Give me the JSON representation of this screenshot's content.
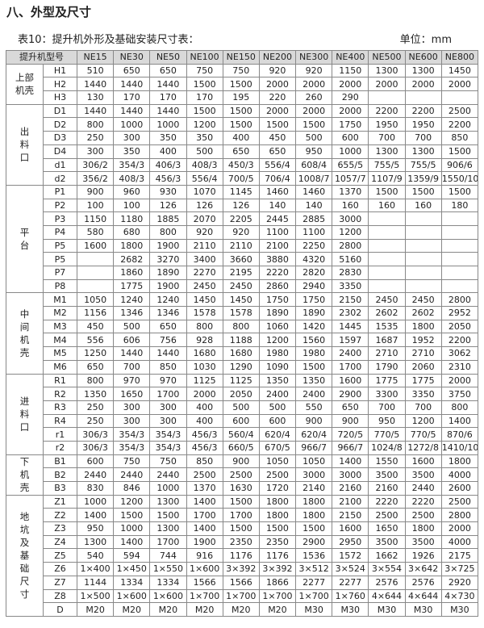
{
  "header": {
    "title": "八、外型及尺寸"
  },
  "caption": {
    "left": "表10：提升机外形及基础安装尺寸表：",
    "right": "单位：mm"
  },
  "table": {
    "header": [
      "提升机型号",
      "NE15",
      "NE30",
      "NE50",
      "NE100",
      "NE150",
      "NE200",
      "NE300",
      "NE400",
      "NE500",
      "NE600",
      "NE800"
    ],
    "groups": [
      {
        "label": "上部机壳",
        "rows": [
          {
            "param": "H1",
            "values": [
              "510",
              "650",
              "650",
              "750",
              "750",
              "920",
              "920",
              "1150",
              "1300",
              "1300",
              "1450"
            ]
          },
          {
            "param": "H2",
            "values": [
              "1440",
              "1440",
              "1440",
              "1500",
              "1500",
              "2000",
              "2000",
              "2000",
              "2000",
              "2000",
              "2000"
            ]
          },
          {
            "param": "H3",
            "values": [
              "130",
              "170",
              "170",
              "170",
              "195",
              "220",
              "260",
              "290",
              null,
              null,
              null
            ]
          }
        ]
      },
      {
        "label": "出料口",
        "rows": [
          {
            "param": "D1",
            "values": [
              "1440",
              "1440",
              "1440",
              "1500",
              "1500",
              "2000",
              "2000",
              "2000",
              "2200",
              "2200",
              "2500"
            ]
          },
          {
            "param": "D2",
            "values": [
              "800",
              "1000",
              "1000",
              "1200",
              "1500",
              "1500",
              "1500",
              "1750",
              "1950",
              "1950",
              "2200"
            ]
          },
          {
            "param": "D3",
            "values": [
              "250",
              "300",
              "350",
              "350",
              "400",
              "450",
              "500",
              "600",
              "700",
              "700",
              "850"
            ]
          },
          {
            "param": "D4",
            "values": [
              "300",
              "350",
              "400",
              "500",
              "650",
              "650",
              "950",
              "1000",
              "1300",
              "1300",
              "1500"
            ]
          },
          {
            "param": "d1",
            "values": [
              "306/2",
              "354/3",
              "406/3",
              "408/3",
              "450/3",
              "556/4",
              "608/4",
              "655/5",
              "755/5",
              "755/5",
              "906/6"
            ]
          },
          {
            "param": "d2",
            "values": [
              "356/2",
              "408/3",
              "456/3",
              "556/4",
              "700/5",
              "706/4",
              "1008/7",
              "1057/7",
              "1107/9",
              "1359/9",
              "1550/10"
            ]
          }
        ]
      },
      {
        "label": "平台",
        "rows": [
          {
            "param": "P1",
            "values": [
              "900",
              "960",
              "930",
              "1070",
              "1145",
              "1460",
              "1460",
              "1370",
              "1500",
              "1500",
              "1500"
            ]
          },
          {
            "param": "P2",
            "values": [
              "100",
              "100",
              "126",
              "126",
              "126",
              "140",
              "140",
              "160",
              "160",
              "160",
              "180"
            ]
          },
          {
            "param": "P3",
            "values": [
              "1150",
              "1180",
              "1885",
              "2070",
              "2205",
              "2445",
              "2885",
              "3000",
              null,
              null,
              null
            ]
          },
          {
            "param": "P4",
            "values": [
              "580",
              "680",
              "800",
              "920",
              "920",
              "1100",
              "1100",
              "1200",
              null,
              null,
              null
            ]
          },
          {
            "param": "P5",
            "values": [
              "1600",
              "1800",
              "1900",
              "2110",
              "2110",
              "2100",
              "2250",
              "2800",
              null,
              null,
              null
            ]
          },
          {
            "param": "P5",
            "values": [
              null,
              "2682",
              "3270",
              "3400",
              "3660",
              "3880",
              "4320",
              "5160",
              null,
              null,
              null
            ]
          },
          {
            "param": "P7",
            "values": [
              null,
              "1860",
              "1890",
              "2270",
              "2195",
              "2220",
              "2820",
              "2830",
              null,
              null,
              null
            ]
          },
          {
            "param": "P8",
            "values": [
              null,
              "1775",
              "1900",
              "2450",
              "2450",
              "2860",
              "2940",
              "3350",
              null,
              null,
              null
            ]
          }
        ]
      },
      {
        "label": "中间机壳",
        "rows": [
          {
            "param": "M1",
            "values": [
              "1050",
              "1240",
              "1240",
              "1450",
              "1450",
              "1750",
              "1750",
              "2150",
              "2450",
              "2450",
              "2800"
            ]
          },
          {
            "param": "M2",
            "values": [
              "1156",
              "1346",
              "1346",
              "1578",
              "1578",
              "1890",
              "1890",
              "2302",
              "2602",
              "2602",
              "2952"
            ]
          },
          {
            "param": "M3",
            "values": [
              "450",
              "500",
              "650",
              "800",
              "800",
              "1060",
              "1420",
              "1445",
              "1535",
              "1800",
              "2050"
            ]
          },
          {
            "param": "M4",
            "values": [
              "556",
              "606",
              "756",
              "928",
              "1188",
              "1200",
              "1560",
              "1597",
              "1687",
              "1952",
              "2200"
            ]
          },
          {
            "param": "M5",
            "values": [
              "1250",
              "1440",
              "1440",
              "1680",
              "1680",
              "1980",
              "1980",
              "2400",
              "2710",
              "2710",
              "3062"
            ]
          },
          {
            "param": "M6",
            "values": [
              "650",
              "700",
              "850",
              "1030",
              "1290",
              "1090",
              "1500",
              "1700",
              "1790",
              "2060",
              "2310"
            ]
          }
        ]
      },
      {
        "label": "进料口",
        "rows": [
          {
            "param": "R1",
            "values": [
              "800",
              "970",
              "970",
              "1125",
              "1125",
              "1350",
              "1350",
              "1600",
              "1775",
              "1775",
              "2000"
            ]
          },
          {
            "param": "R2",
            "values": [
              "1350",
              "1650",
              "1700",
              "2000",
              "2050",
              "2400",
              "2400",
              "2900",
              "3300",
              "3350",
              "3750"
            ]
          },
          {
            "param": "R3",
            "values": [
              "250",
              "300",
              "300",
              "400",
              "500",
              "500",
              "550",
              "650",
              "700",
              "700",
              "800"
            ]
          },
          {
            "param": "R4",
            "values": [
              "250",
              "300",
              "300",
              "400",
              "600",
              "600",
              "900",
              "900",
              "950",
              "1200",
              "1400"
            ]
          },
          {
            "param": "r1",
            "values": [
              "306/3",
              "354/3",
              "354/3",
              "456/3",
              "560/4",
              "620/4",
              "620/4",
              "720/5",
              "770/5",
              "770/5",
              "870/6"
            ]
          },
          {
            "param": "r2",
            "values": [
              "306/3",
              "354/3",
              "354/3",
              "456/3",
              "660/5",
              "670/5",
              "966/7",
              "966/7",
              "1024/8",
              "1272/8",
              "1410/10"
            ]
          }
        ]
      },
      {
        "label": "下机壳",
        "rows": [
          {
            "param": "B1",
            "values": [
              "600",
              "750",
              "750",
              "850",
              "900",
              "1050",
              "1050",
              "1400",
              "1550",
              "1600",
              "1800"
            ]
          },
          {
            "param": "B2",
            "values": [
              "2440",
              "2440",
              "2440",
              "2500",
              "2500",
              "2500",
              "3000",
              "3000",
              "3500",
              "3500",
              "4000"
            ]
          },
          {
            "param": "B3",
            "values": [
              "830",
              "846",
              "1000",
              "1370",
              "1630",
              "1720",
              "2140",
              "2160",
              "2160",
              "2440",
              "2600"
            ]
          }
        ]
      },
      {
        "label": "地坑及基础尺寸",
        "rows": [
          {
            "param": "Z1",
            "values": [
              "1000",
              "1200",
              "1300",
              "1400",
              "1500",
              "1800",
              "1800",
              "2100",
              "2220",
              "2220",
              "2500"
            ]
          },
          {
            "param": "Z2",
            "values": [
              "1400",
              "1500",
              "1500",
              "1700",
              "1700",
              "1800",
              "1800",
              "2150",
              "2500",
              "2500",
              "2800"
            ]
          },
          {
            "param": "Z3",
            "values": [
              "950",
              "1000",
              "1300",
              "1400",
              "1500",
              "1500",
              "1500",
              "1600",
              "1650",
              "1800",
              "2000"
            ]
          },
          {
            "param": "Z4",
            "values": [
              "1300",
              "1400",
              "1700",
              "1900",
              "2350",
              "2350",
              "2900",
              "2950",
              "3500",
              "3500",
              "4000"
            ]
          },
          {
            "param": "Z5",
            "values": [
              "540",
              "594",
              "744",
              "916",
              "1176",
              "1176",
              "1536",
              "1572",
              "1662",
              "1926",
              "2175"
            ]
          },
          {
            "param": "Z6",
            "values": [
              "1×400",
              "1×450",
              "1×550",
              "1×600",
              "3×392",
              "3×392",
              "3×512",
              "3×524",
              "3×554",
              "3×642",
              "3×725"
            ]
          },
          {
            "param": "Z7",
            "values": [
              "1144",
              "1334",
              "1334",
              "1566",
              "1566",
              "1866",
              "2277",
              "2277",
              "2576",
              "2576",
              "2920"
            ]
          },
          {
            "param": "Z8",
            "values": [
              "1×500",
              "1×600",
              "1×600",
              "1×700",
              "1×700",
              "1×700",
              "1×700",
              "1×760",
              "4×644",
              "4×644",
              "4×730"
            ]
          },
          {
            "param": "D",
            "values": [
              "M20",
              "M20",
              "M20",
              "M20",
              "M20",
              "M20",
              "M30",
              "M30",
              "M30",
              "M30",
              "M30"
            ]
          }
        ]
      }
    ]
  }
}
